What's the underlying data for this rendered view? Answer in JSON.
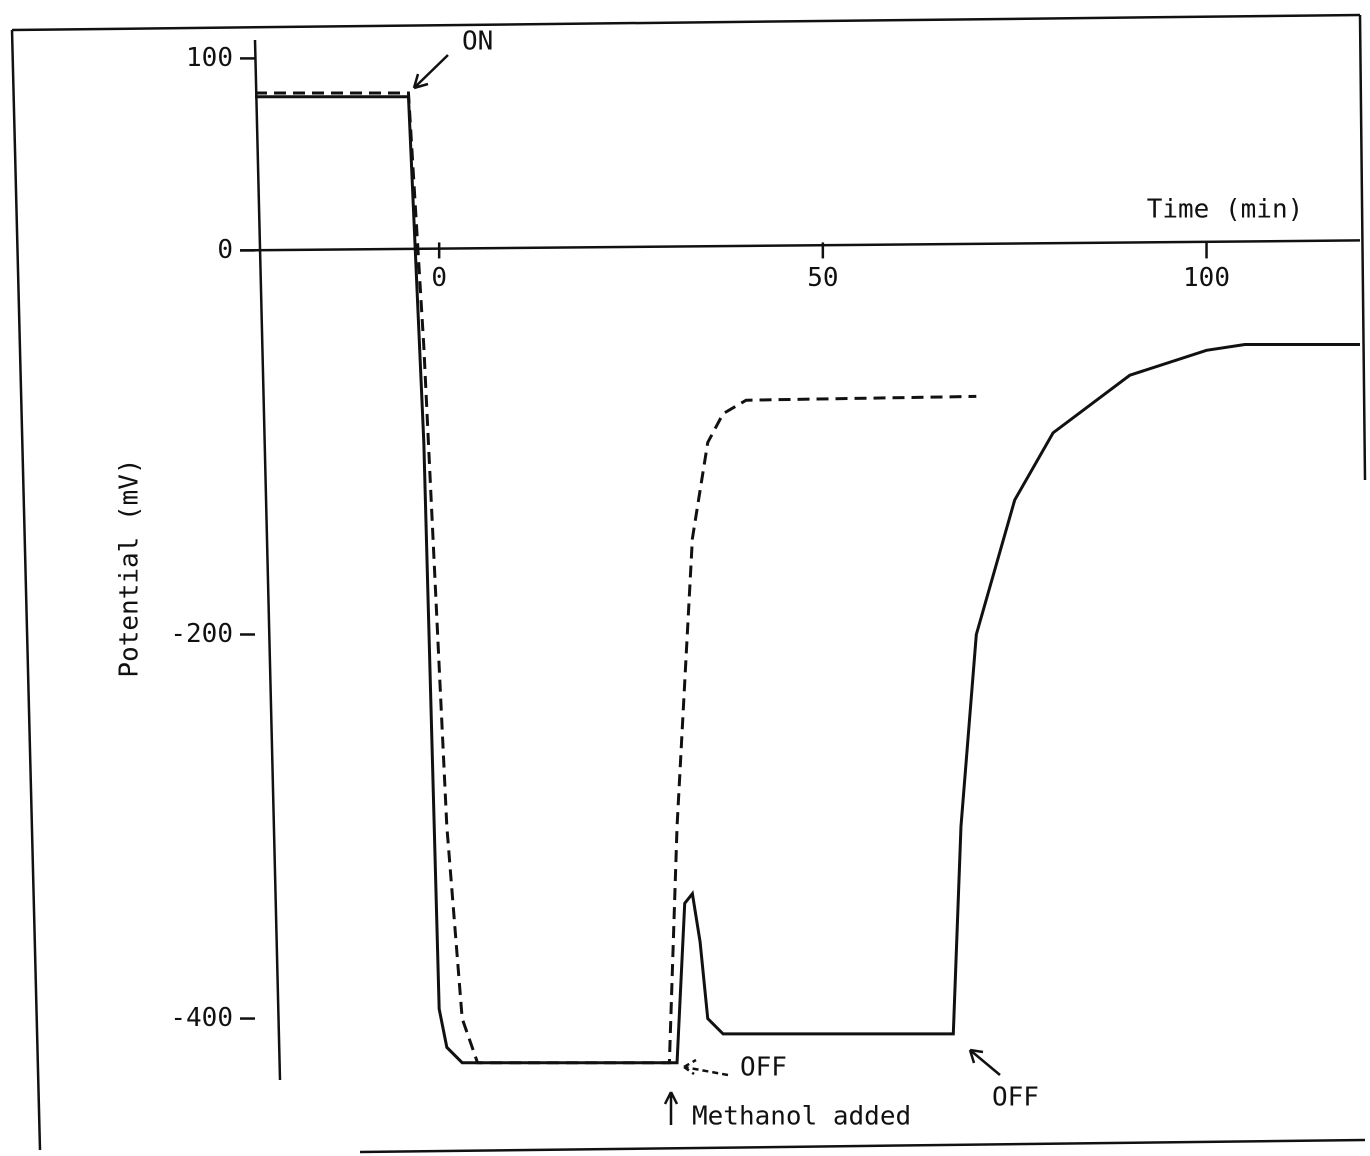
{
  "chart_data": {
    "type": "line",
    "x_label": "Time (min)",
    "y_label": "Potential (mV)",
    "xlim": [
      -24,
      120
    ],
    "ylim": [
      -432,
      120
    ],
    "xticks": [
      0,
      50,
      100
    ],
    "yticks": [
      100,
      0,
      -200,
      -400
    ],
    "annotations": [
      "ON",
      "OFF",
      "Methanol added",
      "OFF"
    ],
    "series": [
      {
        "style": "solid",
        "color": "#111111",
        "x": [
          -24,
          -4,
          -2,
          0,
          1,
          3,
          30,
          31,
          32,
          33,
          34,
          35,
          37,
          67,
          68,
          70,
          75,
          80,
          90,
          100,
          105,
          120
        ],
        "values": [
          80,
          80,
          -100,
          -395,
          -415,
          -423,
          -423,
          -423,
          -340,
          -335,
          -360,
          -400,
          -408,
          -408,
          -300,
          -200,
          -130,
          -95,
          -65,
          -52,
          -49,
          -49
        ]
      },
      {
        "style": "dashed",
        "color": "#111111",
        "x": [
          -24,
          -4,
          -2,
          1,
          3,
          5,
          30,
          31,
          33,
          35,
          37,
          40,
          70
        ],
        "values": [
          82,
          82,
          -50,
          -300,
          -400,
          -423,
          -423,
          -300,
          -150,
          -100,
          -85,
          -78,
          -76
        ]
      }
    ]
  }
}
